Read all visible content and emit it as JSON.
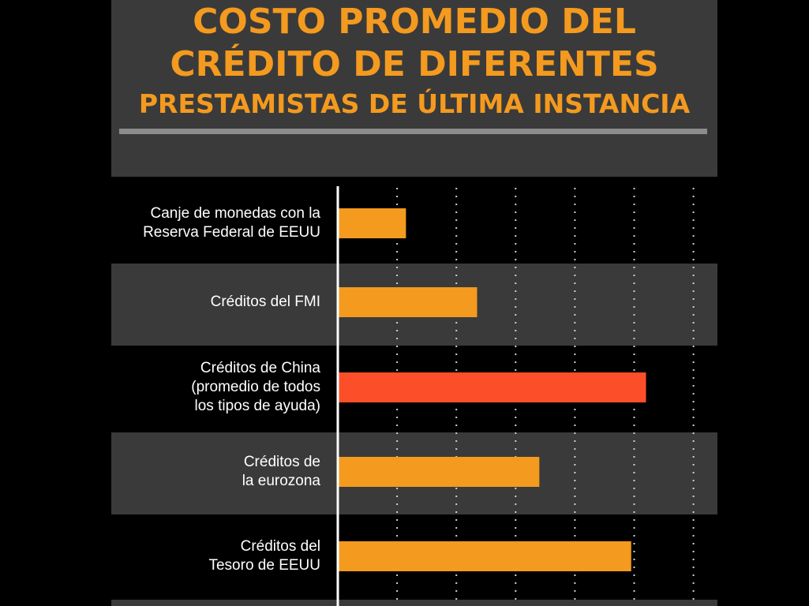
{
  "title": {
    "line1": "COSTO PROMEDIO DEL",
    "line2": "CRÉDITO DE DIFERENTES",
    "line3": "PRESTAMISTAS DE ÚLTIMA INSTANCIA"
  },
  "colors": {
    "accent": "#f39a1f",
    "highlight": "#fc4f29",
    "band": "#3a3a3a",
    "background": "#000000",
    "rule": "#8c8c8c"
  },
  "chart_data": {
    "type": "bar",
    "orientation": "horizontal",
    "categories": [
      [
        "Canje de monedas con la",
        "Reserva Federal de EEUU"
      ],
      [
        "Créditos del FMI"
      ],
      [
        "Créditos de China",
        "(promedio de todos",
        "los tipos de ayuda)"
      ],
      [
        "Créditos de",
        "la eurozona"
      ],
      [
        "Créditos del",
        "Tesoro de EEUU"
      ]
    ],
    "values": [
      1.15,
      2.35,
      5.2,
      3.4,
      4.95
    ],
    "highlight_index": 2,
    "xlim": [
      0,
      6
    ],
    "xticks": [
      1,
      2,
      3,
      4,
      5,
      6
    ],
    "grid": true,
    "xlabel": "",
    "ylabel": ""
  }
}
